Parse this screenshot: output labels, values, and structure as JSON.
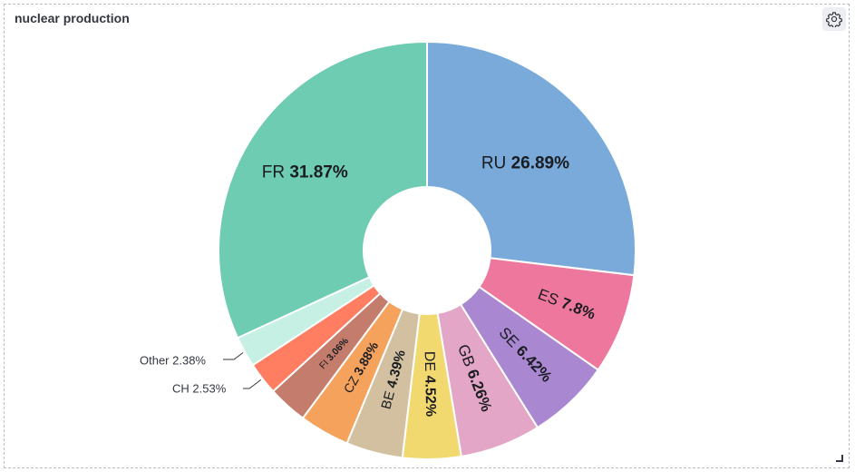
{
  "panel": {
    "title": "nuclear production",
    "settings_icon": "gear-icon"
  },
  "chart_data": {
    "type": "pie",
    "donut": true,
    "title": "nuclear production",
    "slices": [
      {
        "label": "RU",
        "value": 26.89,
        "display": "26.89%",
        "color": "#79aad9"
      },
      {
        "label": "ES",
        "value": 7.8,
        "display": "7.8%",
        "color": "#ee789d"
      },
      {
        "label": "SE",
        "value": 6.42,
        "display": "6.42%",
        "color": "#a987d1"
      },
      {
        "label": "GB",
        "value": 6.26,
        "display": "6.26%",
        "color": "#e4a6c7"
      },
      {
        "label": "DE",
        "value": 4.52,
        "display": "4.52%",
        "color": "#f1d86f"
      },
      {
        "label": "BE",
        "value": 4.39,
        "display": "4.39%",
        "color": "#d2c0a0"
      },
      {
        "label": "CZ",
        "value": 3.88,
        "display": "3.88%",
        "color": "#f5a35c"
      },
      {
        "label": "FI",
        "value": 3.06,
        "display": "3.06%",
        "color": "#c47c6c"
      },
      {
        "label": "CH",
        "value": 2.53,
        "display": "2.53%",
        "color": "#ff7e62"
      },
      {
        "label": "Other",
        "value": 2.38,
        "display": "2.38%",
        "color": "#c5f0e3"
      },
      {
        "label": "FR",
        "value": 31.87,
        "display": "31.87%",
        "color": "#6dccb1"
      }
    ]
  }
}
